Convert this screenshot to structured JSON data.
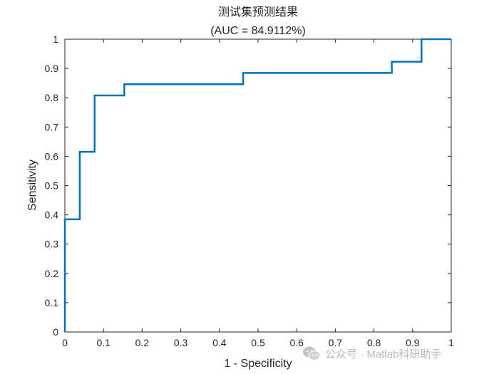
{
  "chart_data": {
    "type": "line",
    "title": "测试集预测结果",
    "subtitle": "(AUC = 84.9112%)",
    "xlabel": "1 - Specificity",
    "ylabel": "Sensitivity",
    "xlim": [
      0,
      1
    ],
    "ylim": [
      0,
      1
    ],
    "xticks": [
      "0",
      "0.1",
      "0.2",
      "0.3",
      "0.4",
      "0.5",
      "0.6",
      "0.7",
      "0.8",
      "0.9",
      "1"
    ],
    "yticks": [
      "0",
      "0.1",
      "0.2",
      "0.3",
      "0.4",
      "0.5",
      "0.6",
      "0.7",
      "0.8",
      "0.9",
      "1"
    ],
    "grid": false,
    "series": [
      {
        "color": "#0072bd",
        "x": [
          0,
          0,
          0.0385,
          0.0385,
          0.0769,
          0.0769,
          0.1538,
          0.1538,
          0.4615,
          0.4615,
          0.8462,
          0.8462,
          0.9231,
          0.9231,
          1
        ],
        "y": [
          0,
          0.3846,
          0.3846,
          0.6154,
          0.6154,
          0.8077,
          0.8077,
          0.8462,
          0.8462,
          0.8846,
          0.8846,
          0.9231,
          0.9231,
          1,
          1
        ]
      }
    ]
  },
  "watermark": {
    "text": "公众号 · Matlab科研助手",
    "icon": "wechat-icon"
  }
}
